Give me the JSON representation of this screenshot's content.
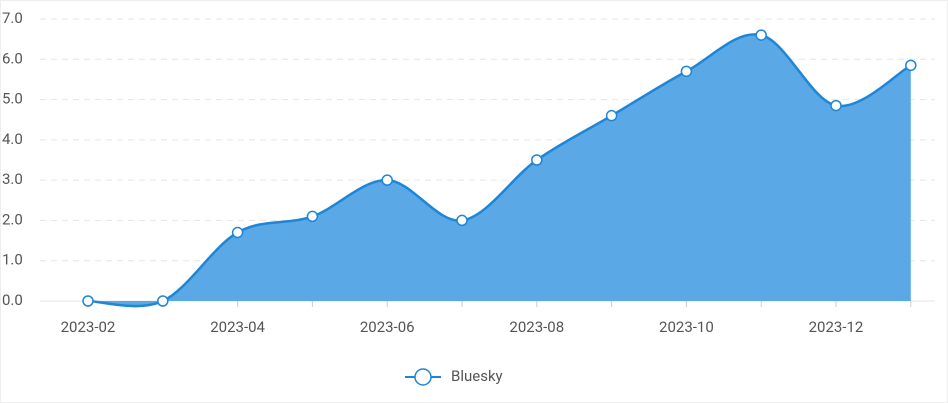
{
  "chart_data": {
    "type": "area",
    "categories": [
      "2023-02",
      null,
      "2023-04",
      null,
      "2023-06",
      null,
      "2023-08",
      null,
      "2023-10",
      null,
      "2023-12",
      null
    ],
    "series": [
      {
        "name": "Bluesky",
        "color": "#1f86d6",
        "fill": "#5aa9e6",
        "values": [
          0,
          0,
          1.7,
          2.1,
          3.0,
          2.0,
          3.5,
          4.6,
          5.7,
          6.6,
          4.85,
          5.85
        ]
      }
    ],
    "ylim": [
      0,
      7
    ],
    "yticks": [
      {
        "value": 0,
        "label": "0.0"
      },
      {
        "value": 1,
        "label": "1.0"
      },
      {
        "value": 2,
        "label": "2.0"
      },
      {
        "value": 3,
        "label": "3.0"
      },
      {
        "value": 4,
        "label": "4.0"
      },
      {
        "value": 5,
        "label": "5.0"
      },
      {
        "value": 6,
        "label": "6.0"
      },
      {
        "value": 7,
        "label": "7.0"
      }
    ],
    "grid": true,
    "legend": "bottom"
  }
}
